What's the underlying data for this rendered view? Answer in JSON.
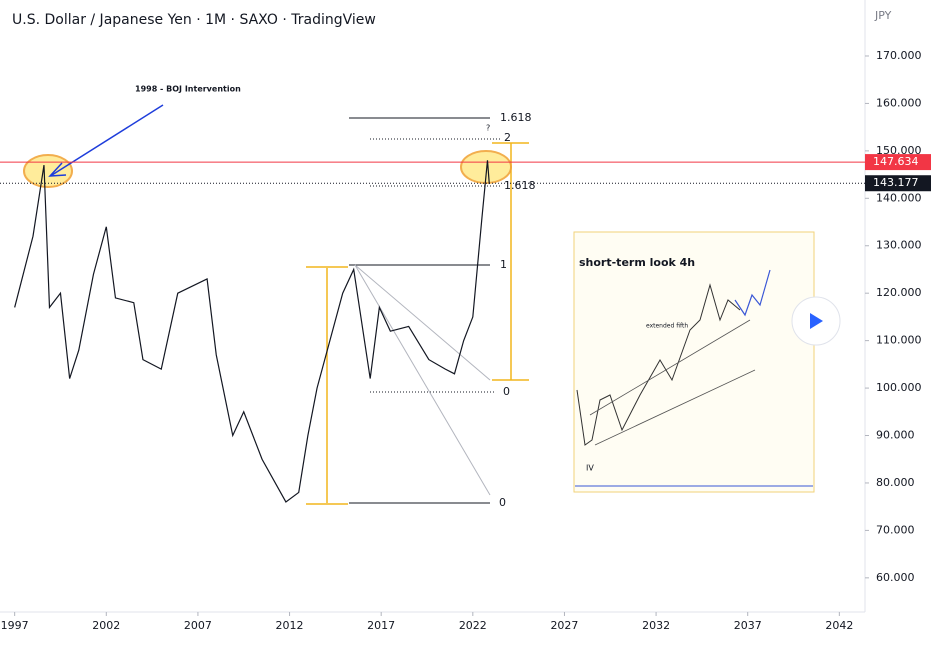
{
  "chart_data": {
    "type": "line",
    "title": "U.S. Dollar / Japanese Yen · 1M · SAXO · TradingView",
    "currency": "JPY",
    "x": [
      1997.0,
      1998.0,
      1998.6,
      1998.9,
      1999.5,
      2000.0,
      2000.5,
      2001.3,
      2002.0,
      2002.5,
      2003.5,
      2004.0,
      2005.0,
      2005.9,
      2007.5,
      2008.0,
      2008.9,
      2009.5,
      2010.5,
      2011.8,
      2012.5,
      2013.0,
      2013.5,
      2014.9,
      2015.5,
      2016.4,
      2016.9,
      2017.5,
      2018.5,
      2019.6,
      2020.5,
      2021.0,
      2021.5,
      2022.0,
      2022.5,
      2022.8,
      2022.9
    ],
    "values": [
      117,
      132,
      147,
      117,
      120,
      102,
      108,
      124,
      134,
      119,
      118,
      106,
      104,
      120,
      123,
      107,
      90,
      95,
      85,
      76,
      78,
      90,
      100,
      120,
      125,
      102,
      117,
      112,
      113,
      106,
      104,
      103,
      110,
      115,
      136,
      148,
      143
    ],
    "color": "#131722",
    "xlim": [
      1996.2,
      2043.4
    ],
    "xticks": [
      1997,
      2002,
      2007,
      2012,
      2017,
      2022,
      2027,
      2032,
      2037,
      2042
    ],
    "ylim": [
      52.8,
      181.8
    ],
    "yticks": [
      {
        "value": 60,
        "label": "60.000"
      },
      {
        "value": 70,
        "label": "70.000"
      },
      {
        "value": 80,
        "label": "80.000"
      },
      {
        "value": 90,
        "label": "90.000"
      },
      {
        "value": 100,
        "label": "100.000"
      },
      {
        "value": 110,
        "label": "110.000"
      },
      {
        "value": 120,
        "label": "120.000"
      },
      {
        "value": 130,
        "label": "130.000"
      },
      {
        "value": 140,
        "label": "140.000"
      },
      {
        "value": 150,
        "label": "150.000"
      },
      {
        "value": 160,
        "label": "160.000"
      },
      {
        "value": 170,
        "label": "170.000"
      }
    ],
    "price_lines": [
      {
        "value": 147.634,
        "label": "147.634",
        "color": "#f23645"
      },
      {
        "value": 143.177,
        "label": "143.177",
        "color": "#131722"
      }
    ],
    "annotations": {
      "intervention": "1998 - BOJ Intervention",
      "fib_top": "1.618",
      "question": "?",
      "fib_two": "2",
      "fib_mid": "1.618",
      "fib_one": "1",
      "fib_zero_a": "0",
      "fib_zero_b": "0"
    },
    "inset": {
      "title": "short-term look 4h",
      "note": "extended fifth",
      "wave": "IV"
    }
  }
}
